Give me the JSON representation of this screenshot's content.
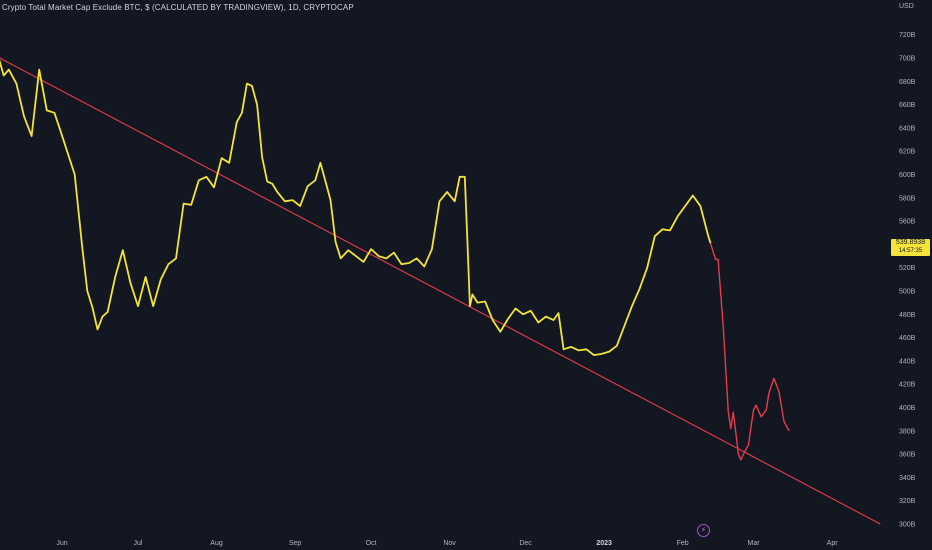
{
  "header": {
    "title": "Crypto Total Market Cap Exclude BTC, $ (CALCULATED BY TRADINGVIEW), 1D, CRYPTOCAP",
    "currency": "USD"
  },
  "price_tag": {
    "value": "539.8938",
    "countdown": "14:57:35"
  },
  "icons": {
    "flash": "lightning-icon"
  },
  "colors": {
    "background": "#131722",
    "series_main": "#f4e33a",
    "series_recent": "#e93b4a",
    "trendline": "#e93b4a"
  },
  "chart_data": {
    "type": "line",
    "title": "Crypto Total Market Cap Exclude BTC, $ (CALCULATED BY TRADINGVIEW), 1D, CRYPTOCAP",
    "x_unit": "date",
    "y_unit": "USD (billions)",
    "ylim": [
      296,
      756
    ],
    "y_ticks": [
      "300B",
      "320B",
      "340B",
      "360B",
      "380B",
      "400B",
      "420B",
      "440B",
      "460B",
      "480B",
      "500B",
      "520B",
      "540B",
      "560B",
      "580B",
      "600B",
      "620B",
      "640B",
      "660B",
      "680B",
      "700B",
      "720B"
    ],
    "x_ticks": [
      {
        "label": "Jun",
        "date": "2022-06-01",
        "bold": false
      },
      {
        "label": "Jul",
        "date": "2022-07-01",
        "bold": false
      },
      {
        "label": "Aug",
        "date": "2022-08-01",
        "bold": false
      },
      {
        "label": "Sep",
        "date": "2022-09-01",
        "bold": false
      },
      {
        "label": "Oct",
        "date": "2022-10-01",
        "bold": false
      },
      {
        "label": "Nov",
        "date": "2022-11-01",
        "bold": false
      },
      {
        "label": "Dec",
        "date": "2022-12-01",
        "bold": false
      },
      {
        "label": "2023",
        "date": "2023-01-01",
        "bold": true
      },
      {
        "label": "Feb",
        "date": "2023-02-01",
        "bold": false
      },
      {
        "label": "Mar",
        "date": "2023-03-01",
        "bold": false
      },
      {
        "label": "Apr",
        "date": "2023-04-01",
        "bold": false
      }
    ],
    "grid": false,
    "series": [
      {
        "color": "#f4e33a",
        "points": [
          [
            "2022-05-04",
            746
          ],
          [
            "2022-05-07",
            700
          ],
          [
            "2022-05-09",
            685
          ],
          [
            "2022-05-11",
            690
          ],
          [
            "2022-05-14",
            678
          ],
          [
            "2022-05-17",
            650
          ],
          [
            "2022-05-20",
            633
          ],
          [
            "2022-05-23",
            690
          ],
          [
            "2022-05-26",
            655
          ],
          [
            "2022-05-29",
            653
          ],
          [
            "2022-05-31",
            640
          ],
          [
            "2022-06-03",
            620
          ],
          [
            "2022-06-06",
            600
          ],
          [
            "2022-06-09",
            537
          ],
          [
            "2022-06-11",
            500
          ],
          [
            "2022-06-13",
            486
          ],
          [
            "2022-06-15",
            467
          ],
          [
            "2022-06-17",
            478
          ],
          [
            "2022-06-19",
            482
          ],
          [
            "2022-06-22",
            512
          ],
          [
            "2022-06-25",
            535
          ],
          [
            "2022-06-28",
            507
          ],
          [
            "2022-07-01",
            487
          ],
          [
            "2022-07-04",
            512
          ],
          [
            "2022-07-07",
            487
          ],
          [
            "2022-07-10",
            510
          ],
          [
            "2022-07-13",
            523
          ],
          [
            "2022-07-16",
            528
          ],
          [
            "2022-07-19",
            575
          ],
          [
            "2022-07-22",
            574
          ],
          [
            "2022-07-25",
            595
          ],
          [
            "2022-07-28",
            598
          ],
          [
            "2022-07-31",
            589
          ],
          [
            "2022-08-03",
            614
          ],
          [
            "2022-08-06",
            610
          ],
          [
            "2022-08-09",
            645
          ],
          [
            "2022-08-11",
            653
          ],
          [
            "2022-08-13",
            678
          ],
          [
            "2022-08-15",
            676
          ],
          [
            "2022-08-17",
            660
          ],
          [
            "2022-08-19",
            615
          ],
          [
            "2022-08-21",
            594
          ],
          [
            "2022-08-23",
            592
          ],
          [
            "2022-08-25",
            585
          ],
          [
            "2022-08-28",
            577
          ],
          [
            "2022-08-31",
            578
          ],
          [
            "2022-09-03",
            573
          ],
          [
            "2022-09-06",
            590
          ],
          [
            "2022-09-09",
            595
          ],
          [
            "2022-09-11",
            610
          ],
          [
            "2022-09-13",
            594
          ],
          [
            "2022-09-15",
            578
          ],
          [
            "2022-09-17",
            542
          ],
          [
            "2022-09-19",
            528
          ],
          [
            "2022-09-22",
            535
          ],
          [
            "2022-09-25",
            530
          ],
          [
            "2022-09-28",
            525
          ],
          [
            "2022-10-01",
            536
          ],
          [
            "2022-10-04",
            530
          ],
          [
            "2022-10-07",
            528
          ],
          [
            "2022-10-10",
            533
          ],
          [
            "2022-10-13",
            523
          ],
          [
            "2022-10-16",
            524
          ],
          [
            "2022-10-19",
            528
          ],
          [
            "2022-10-22",
            521
          ],
          [
            "2022-10-25",
            536
          ],
          [
            "2022-10-28",
            577
          ],
          [
            "2022-10-31",
            585
          ],
          [
            "2022-11-03",
            577
          ],
          [
            "2022-11-05",
            598
          ],
          [
            "2022-11-07",
            598
          ],
          [
            "2022-11-08",
            545
          ],
          [
            "2022-11-09",
            487
          ],
          [
            "2022-11-10",
            497
          ],
          [
            "2022-11-12",
            490
          ],
          [
            "2022-11-15",
            491
          ],
          [
            "2022-11-18",
            475
          ],
          [
            "2022-11-21",
            465
          ],
          [
            "2022-11-24",
            476
          ],
          [
            "2022-11-27",
            485
          ],
          [
            "2022-11-30",
            480
          ],
          [
            "2022-12-03",
            483
          ],
          [
            "2022-12-06",
            473
          ],
          [
            "2022-12-09",
            478
          ],
          [
            "2022-12-12",
            475
          ],
          [
            "2022-12-14",
            481
          ],
          [
            "2022-12-16",
            450
          ],
          [
            "2022-12-19",
            452
          ],
          [
            "2022-12-22",
            449
          ],
          [
            "2022-12-25",
            450
          ],
          [
            "2022-12-28",
            445
          ],
          [
            "2022-12-31",
            446
          ],
          [
            "2023-01-03",
            448
          ],
          [
            "2023-01-06",
            453
          ],
          [
            "2023-01-09",
            470
          ],
          [
            "2023-01-12",
            487
          ],
          [
            "2023-01-15",
            502
          ],
          [
            "2023-01-18",
            520
          ],
          [
            "2023-01-21",
            547
          ],
          [
            "2023-01-24",
            553
          ],
          [
            "2023-01-27",
            552
          ],
          [
            "2023-01-30",
            564
          ],
          [
            "2023-02-02",
            573
          ],
          [
            "2023-02-05",
            582
          ],
          [
            "2023-02-08",
            573
          ],
          [
            "2023-02-11",
            548
          ],
          [
            "2023-02-12",
            541
          ]
        ]
      },
      {
        "color": "#e93b4a",
        "points": [
          [
            "2023-02-12",
            541
          ],
          [
            "2023-02-14",
            527
          ],
          [
            "2023-02-15",
            527
          ],
          [
            "2023-02-17",
            470
          ],
          [
            "2023-02-19",
            396
          ],
          [
            "2023-02-20",
            382
          ],
          [
            "2023-02-21",
            396
          ],
          [
            "2023-02-23",
            360
          ],
          [
            "2023-02-24",
            355
          ],
          [
            "2023-02-25",
            360
          ],
          [
            "2023-02-27",
            368
          ],
          [
            "2023-02-28",
            384
          ],
          [
            "2023-03-01",
            398
          ],
          [
            "2023-03-02",
            402
          ],
          [
            "2023-03-04",
            392
          ],
          [
            "2023-03-06",
            398
          ],
          [
            "2023-03-07",
            412
          ],
          [
            "2023-03-09",
            425
          ],
          [
            "2023-03-11",
            414
          ],
          [
            "2023-03-13",
            388
          ],
          [
            "2023-03-15",
            380
          ]
        ]
      }
    ],
    "trendline": {
      "color": "#e93b4a",
      "from": [
        "2022-05-04",
        704
      ],
      "to": [
        "2023-04-20",
        300
      ]
    }
  }
}
